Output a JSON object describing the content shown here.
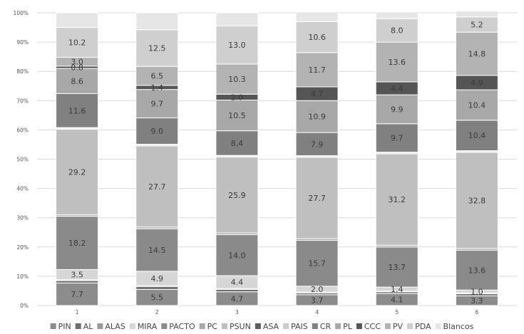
{
  "chart_data": {
    "type": "bar",
    "stacked": true,
    "percent": true,
    "categories": [
      "1",
      "2",
      "3",
      "4",
      "5",
      "6"
    ],
    "y_ticks": [
      "0%",
      "10%",
      "20%",
      "30%",
      "40%",
      "50%",
      "60%",
      "70%",
      "80%",
      "90%",
      "100%"
    ],
    "ylim": [
      0,
      100
    ],
    "grid": true,
    "legend_position": "bottom",
    "series": [
      {
        "name": "PIN",
        "color": "#8c8c8c",
        "values": [
          7.7,
          5.5,
          4.7,
          3.7,
          4.1,
          3.3
        ],
        "labels": [
          "7.7",
          "5.5",
          "4.7",
          "3.7",
          "4.1",
          "3.3"
        ]
      },
      {
        "name": "AL",
        "color": "#6e6e6e",
        "values": [
          0.8,
          1.0,
          0.8,
          0.6,
          0.6,
          0.7
        ],
        "labels": [
          "",
          "",
          "",
          "",
          "",
          ""
        ]
      },
      {
        "name": "ALAS",
        "color": "#9a9a9a",
        "values": [
          0.3,
          0.3,
          0.3,
          0.3,
          0.2,
          0.3
        ],
        "labels": [
          "",
          "",
          "",
          "",
          "",
          ""
        ]
      },
      {
        "name": "MIRA",
        "color": "#d6d6d6",
        "values": [
          3.5,
          4.9,
          4.4,
          2.0,
          1.4,
          1.0
        ],
        "labels": [
          "3.5",
          "4.9",
          "4.4",
          "2.0",
          "1.4",
          "1.0"
        ]
      },
      {
        "name": "PACTO",
        "color": "#8a8a8a",
        "values": [
          18.2,
          14.5,
          14.0,
          15.7,
          13.7,
          13.6
        ],
        "labels": [
          "18.2",
          "14.5",
          "14.0",
          "15.7",
          "13.7",
          "13.6"
        ]
      },
      {
        "name": "PC",
        "color": "#a6a6a6",
        "values": [
          0.5,
          0.6,
          0.6,
          0.6,
          0.6,
          0.6
        ],
        "labels": [
          "",
          "",
          "",
          "",
          "",
          ""
        ]
      },
      {
        "name": "PSUN",
        "color": "#bfbfbf",
        "values": [
          29.2,
          27.7,
          25.9,
          27.7,
          31.2,
          32.8
        ],
        "labels": [
          "29.2",
          "27.7",
          "25.9",
          "27.7",
          "31.2",
          "32.8"
        ]
      },
      {
        "name": "ASA",
        "color": "#5e5e5e",
        "values": [
          0.3,
          0.3,
          0.3,
          0.3,
          0.3,
          0.3
        ],
        "labels": [
          "",
          "",
          "",
          "",
          "",
          ""
        ]
      },
      {
        "name": "PAIS",
        "color": "#cccccc",
        "values": [
          0.3,
          0.3,
          0.3,
          0.3,
          0.3,
          0.3
        ],
        "labels": [
          "",
          "",
          "",
          "",
          "",
          ""
        ]
      },
      {
        "name": "CR",
        "color": "#808080",
        "values": [
          11.6,
          9.0,
          8.4,
          7.9,
          9.7,
          10.4
        ],
        "labels": [
          "11.6",
          "9.0",
          "8.4",
          "7.9",
          "9.7",
          "10.4"
        ]
      },
      {
        "name": "PL",
        "color": "#a8a8a8",
        "values": [
          8.6,
          9.7,
          10.5,
          10.9,
          9.9,
          10.4
        ],
        "labels": [
          "8.6",
          "9.7",
          "10.5",
          "10.9",
          "9.9",
          "10.4"
        ]
      },
      {
        "name": "CCC",
        "color": "#555555",
        "values": [
          0.8,
          1.4,
          2.0,
          4.7,
          4.4,
          4.9
        ],
        "labels": [
          "0.8",
          "1.4",
          "2.0",
          "4.7",
          "4.4",
          "4.9"
        ]
      },
      {
        "name": "PV",
        "color": "#b3b3b3",
        "values": [
          3.0,
          6.5,
          10.3,
          11.7,
          13.6,
          14.8
        ],
        "labels": [
          "3.0",
          "6.5",
          "10.3",
          "11.7",
          "13.6",
          "14.8"
        ]
      },
      {
        "name": "PDA",
        "color": "#cfcfcf",
        "values": [
          10.2,
          12.5,
          13.0,
          10.6,
          8.0,
          5.2
        ],
        "labels": [
          "10.2",
          "12.5",
          "13.0",
          "10.6",
          "8.0",
          "5.2"
        ]
      },
      {
        "name": "Blancos",
        "color": "#e6e6e6",
        "values": [
          5.0,
          5.8,
          4.5,
          3.3,
          2.3,
          2.0
        ],
        "labels": [
          "",
          "",
          "",
          "",
          "",
          ""
        ]
      }
    ]
  }
}
